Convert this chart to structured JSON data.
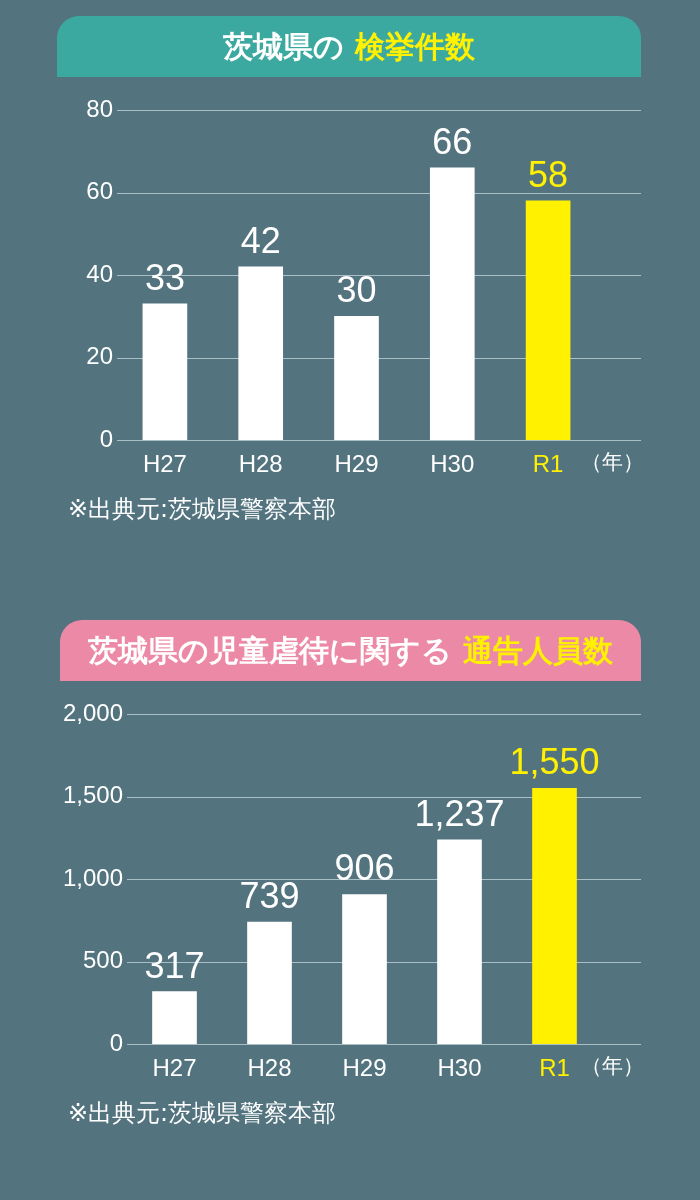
{
  "chart_data": [
    {
      "type": "bar",
      "title": "茨城県の 検挙件数",
      "categories": [
        "H27",
        "H28",
        "H29",
        "H30",
        "R1"
      ],
      "values": [
        33,
        42,
        30,
        66,
        58
      ],
      "colors": [
        "#ffffff",
        "#ffffff",
        "#ffffff",
        "#ffffff",
        "#fff100"
      ],
      "xlabel": "（年）",
      "ylim": [
        0,
        80
      ],
      "yticks": [
        0,
        20,
        40,
        60,
        80
      ],
      "grid": "y",
      "data_labels": true,
      "annotations": [
        "※出典元:茨城県警察本部"
      ]
    },
    {
      "type": "bar",
      "title": "茨城県の児童虐待に関する 通告人員数",
      "categories": [
        "H27",
        "H28",
        "H29",
        "H30",
        "R1"
      ],
      "values": [
        317,
        739,
        906,
        1237,
        1550
      ],
      "colors": [
        "#ffffff",
        "#ffffff",
        "#ffffff",
        "#ffffff",
        "#fff100"
      ],
      "value_labels": [
        "317",
        "739",
        "906",
        "1,237",
        "1,550"
      ],
      "xlabel": "（年）",
      "ylim": [
        0,
        2000
      ],
      "yticks": [
        0,
        500,
        {
          "value": 1000,
          "label": "1,000"
        },
        {
          "value": 1500,
          "label": "1,500"
        },
        {
          "value": 2000,
          "label": "2,000"
        }
      ],
      "grid": "y",
      "annotations": [
        "※出典元:茨城県警察本部"
      ]
    }
  ]
}
